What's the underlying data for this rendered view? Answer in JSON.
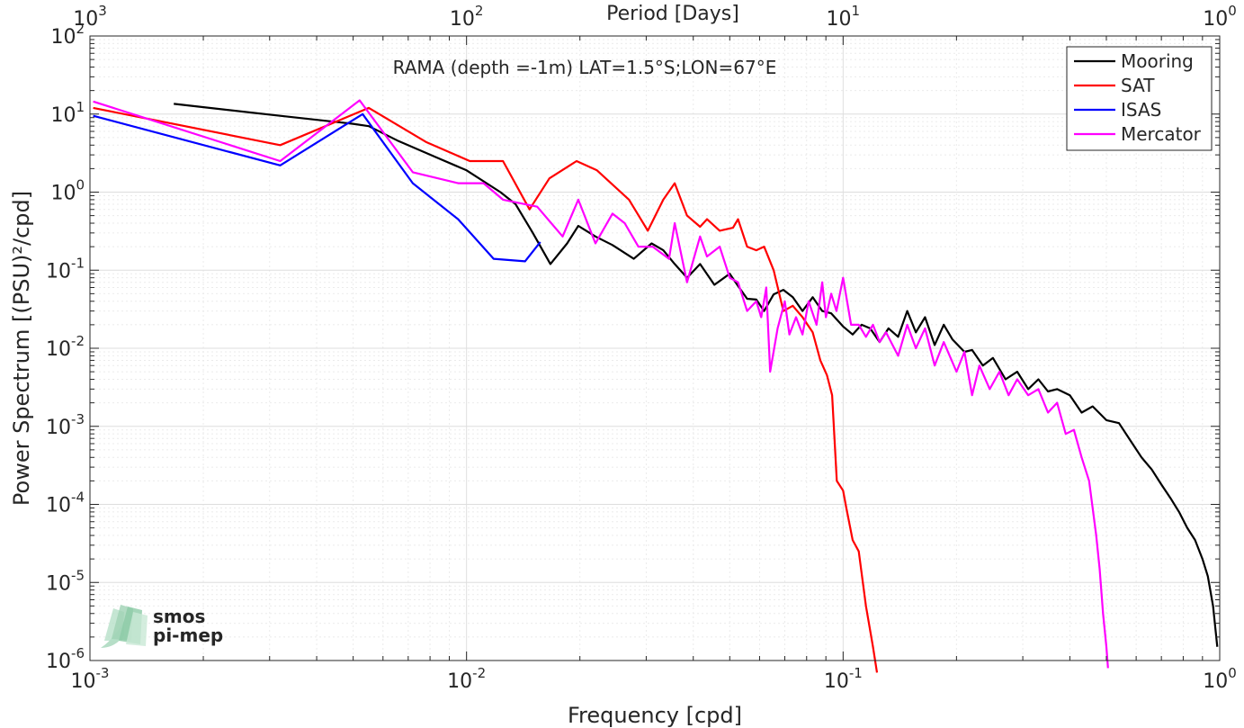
{
  "chart_data": {
    "type": "line",
    "title": "RAMA (depth =-1m) LAT=1.5°S;LON=67°E",
    "xlabel": "Frequency [cpd]",
    "ylabel": "Power Spectrum [(PSU)²/cpd]",
    "x2label": "Period [Days]",
    "xscale": "log",
    "yscale": "log",
    "xlim": [
      0.001,
      1
    ],
    "ylim": [
      1e-06,
      100
    ],
    "grid": true,
    "legend_position": "top-right",
    "x_ticks": [
      {
        "value": 0.001,
        "base": "10",
        "exp": "-3"
      },
      {
        "value": 0.01,
        "base": "10",
        "exp": "-2"
      },
      {
        "value": 0.1,
        "base": "10",
        "exp": "-1"
      },
      {
        "value": 1,
        "base": "10",
        "exp": "0"
      }
    ],
    "x2_ticks": [
      {
        "value": 0.001,
        "base": "10",
        "exp": "3"
      },
      {
        "value": 0.01,
        "base": "10",
        "exp": "2"
      },
      {
        "value": 0.1,
        "base": "10",
        "exp": "1"
      },
      {
        "value": 1,
        "base": "10",
        "exp": "0"
      }
    ],
    "y_ticks": [
      {
        "value": 100,
        "base": "10",
        "exp": "2"
      },
      {
        "value": 10,
        "base": "10",
        "exp": "1"
      },
      {
        "value": 1,
        "base": "10",
        "exp": "0"
      },
      {
        "value": 0.1,
        "base": "10",
        "exp": "-1"
      },
      {
        "value": 0.01,
        "base": "10",
        "exp": "-2"
      },
      {
        "value": 0.001,
        "base": "10",
        "exp": "-3"
      },
      {
        "value": 0.0001,
        "base": "10",
        "exp": "-4"
      },
      {
        "value": 1e-05,
        "base": "10",
        "exp": "-5"
      },
      {
        "value": 1e-06,
        "base": "10",
        "exp": "-6"
      }
    ],
    "series": [
      {
        "name": "Mooring",
        "color": "#000000",
        "points": [
          [
            0.00167,
            13.5
          ],
          [
            0.0032,
            9.5
          ],
          [
            0.005,
            7.5
          ],
          [
            0.0055,
            7.0
          ],
          [
            0.0066,
            4.5
          ],
          [
            0.0083,
            2.8
          ],
          [
            0.01,
            1.9
          ],
          [
            0.0123,
            1.0
          ],
          [
            0.0135,
            0.7
          ],
          [
            0.015,
            0.3
          ],
          [
            0.0167,
            0.12
          ],
          [
            0.0185,
            0.22
          ],
          [
            0.0198,
            0.37
          ],
          [
            0.022,
            0.27
          ],
          [
            0.0244,
            0.21
          ],
          [
            0.0278,
            0.14
          ],
          [
            0.031,
            0.22
          ],
          [
            0.0333,
            0.18
          ],
          [
            0.0357,
            0.12
          ],
          [
            0.0385,
            0.08
          ],
          [
            0.0417,
            0.12
          ],
          [
            0.0455,
            0.065
          ],
          [
            0.05,
            0.09
          ],
          [
            0.0526,
            0.063
          ],
          [
            0.0556,
            0.043
          ],
          [
            0.0588,
            0.042
          ],
          [
            0.0617,
            0.03
          ],
          [
            0.0654,
            0.049
          ],
          [
            0.0694,
            0.056
          ],
          [
            0.0735,
            0.045
          ],
          [
            0.078,
            0.03
          ],
          [
            0.083,
            0.045
          ],
          [
            0.088,
            0.03
          ],
          [
            0.093,
            0.028
          ],
          [
            0.1,
            0.019
          ],
          [
            0.106,
            0.015
          ],
          [
            0.112,
            0.02
          ],
          [
            0.118,
            0.018
          ],
          [
            0.125,
            0.012
          ],
          [
            0.132,
            0.018
          ],
          [
            0.14,
            0.014
          ],
          [
            0.148,
            0.03
          ],
          [
            0.156,
            0.016
          ],
          [
            0.165,
            0.025
          ],
          [
            0.175,
            0.011
          ],
          [
            0.185,
            0.02
          ],
          [
            0.195,
            0.013
          ],
          [
            0.21,
            0.009
          ],
          [
            0.22,
            0.0095
          ],
          [
            0.235,
            0.006
          ],
          [
            0.25,
            0.0075
          ],
          [
            0.27,
            0.004
          ],
          [
            0.29,
            0.005
          ],
          [
            0.31,
            0.003
          ],
          [
            0.33,
            0.004
          ],
          [
            0.35,
            0.0028
          ],
          [
            0.37,
            0.003
          ],
          [
            0.4,
            0.0025
          ],
          [
            0.43,
            0.0015
          ],
          [
            0.46,
            0.0018
          ],
          [
            0.5,
            0.0012
          ],
          [
            0.54,
            0.0011
          ],
          [
            0.58,
            0.00065
          ],
          [
            0.62,
            0.0004
          ],
          [
            0.66,
            0.00028
          ],
          [
            0.7,
            0.00018
          ],
          [
            0.74,
            0.00012
          ],
          [
            0.78,
            8e-05
          ],
          [
            0.82,
            5e-05
          ],
          [
            0.86,
            3.5e-05
          ],
          [
            0.9,
            2e-05
          ],
          [
            0.93,
            1.2e-05
          ],
          [
            0.96,
            5e-06
          ],
          [
            0.985,
            1.5e-06
          ]
        ]
      },
      {
        "name": "SAT",
        "color": "#ff0000",
        "points": [
          [
            0.00102,
            12
          ],
          [
            0.0032,
            4
          ],
          [
            0.0055,
            12
          ],
          [
            0.0078,
            4.4
          ],
          [
            0.0102,
            2.5
          ],
          [
            0.0125,
            2.5
          ],
          [
            0.0147,
            0.6
          ],
          [
            0.0166,
            1.5
          ],
          [
            0.0196,
            2.5
          ],
          [
            0.0222,
            1.9
          ],
          [
            0.027,
            0.8
          ],
          [
            0.0303,
            0.32
          ],
          [
            0.0333,
            0.8
          ],
          [
            0.0357,
            1.3
          ],
          [
            0.0385,
            0.5
          ],
          [
            0.0417,
            0.36
          ],
          [
            0.0435,
            0.45
          ],
          [
            0.047,
            0.32
          ],
          [
            0.051,
            0.35
          ],
          [
            0.0526,
            0.45
          ],
          [
            0.0556,
            0.2
          ],
          [
            0.0588,
            0.18
          ],
          [
            0.0617,
            0.2
          ],
          [
            0.0654,
            0.1
          ],
          [
            0.0694,
            0.03
          ],
          [
            0.0735,
            0.035
          ],
          [
            0.078,
            0.025
          ],
          [
            0.083,
            0.016
          ],
          [
            0.087,
            0.007
          ],
          [
            0.0906,
            0.0045
          ],
          [
            0.0935,
            0.0025
          ],
          [
            0.0962,
            0.0002
          ],
          [
            0.1,
            0.00015
          ],
          [
            0.102,
            9e-05
          ],
          [
            0.106,
            3.5e-05
          ],
          [
            0.11,
            2.5e-05
          ],
          [
            0.115,
            5e-06
          ],
          [
            0.12,
            1.5e-06
          ],
          [
            0.123,
            7e-07
          ]
        ]
      },
      {
        "name": "ISAS",
        "color": "#0000ff",
        "points": [
          [
            0.00102,
            9.5
          ],
          [
            0.0032,
            2.2
          ],
          [
            0.0053,
            10
          ],
          [
            0.0072,
            1.3
          ],
          [
            0.0095,
            0.45
          ],
          [
            0.0118,
            0.14
          ],
          [
            0.0143,
            0.13
          ],
          [
            0.0157,
            0.23
          ]
        ]
      },
      {
        "name": "Mercator",
        "color": "#ff00ff",
        "points": [
          [
            0.00102,
            14.5
          ],
          [
            0.0032,
            2.5
          ],
          [
            0.0052,
            15
          ],
          [
            0.0072,
            1.8
          ],
          [
            0.0095,
            1.3
          ],
          [
            0.0111,
            1.3
          ],
          [
            0.0125,
            0.8
          ],
          [
            0.0143,
            0.7
          ],
          [
            0.0154,
            0.65
          ],
          [
            0.018,
            0.27
          ],
          [
            0.0198,
            0.8
          ],
          [
            0.022,
            0.22
          ],
          [
            0.0244,
            0.53
          ],
          [
            0.0263,
            0.4
          ],
          [
            0.0286,
            0.2
          ],
          [
            0.0312,
            0.2
          ],
          [
            0.0345,
            0.14
          ],
          [
            0.0357,
            0.4
          ],
          [
            0.0385,
            0.07
          ],
          [
            0.0417,
            0.27
          ],
          [
            0.0435,
            0.15
          ],
          [
            0.047,
            0.2
          ],
          [
            0.05,
            0.08
          ],
          [
            0.0526,
            0.07
          ],
          [
            0.0556,
            0.03
          ],
          [
            0.0588,
            0.04
          ],
          [
            0.0606,
            0.025
          ],
          [
            0.0625,
            0.06
          ],
          [
            0.064,
            0.005
          ],
          [
            0.067,
            0.018
          ],
          [
            0.07,
            0.04
          ],
          [
            0.072,
            0.015
          ],
          [
            0.075,
            0.025
          ],
          [
            0.078,
            0.015
          ],
          [
            0.081,
            0.04
          ],
          [
            0.085,
            0.02
          ],
          [
            0.088,
            0.07
          ],
          [
            0.09,
            0.025
          ],
          [
            0.093,
            0.05
          ],
          [
            0.096,
            0.03
          ],
          [
            0.1,
            0.08
          ],
          [
            0.105,
            0.02
          ],
          [
            0.11,
            0.02
          ],
          [
            0.115,
            0.014
          ],
          [
            0.12,
            0.02
          ],
          [
            0.125,
            0.012
          ],
          [
            0.13,
            0.016
          ],
          [
            0.14,
            0.008
          ],
          [
            0.148,
            0.02
          ],
          [
            0.156,
            0.01
          ],
          [
            0.165,
            0.018
          ],
          [
            0.175,
            0.006
          ],
          [
            0.185,
            0.012
          ],
          [
            0.2,
            0.005
          ],
          [
            0.21,
            0.009
          ],
          [
            0.22,
            0.0025
          ],
          [
            0.23,
            0.006
          ],
          [
            0.245,
            0.003
          ],
          [
            0.26,
            0.005
          ],
          [
            0.275,
            0.0025
          ],
          [
            0.29,
            0.004
          ],
          [
            0.31,
            0.0025
          ],
          [
            0.33,
            0.003
          ],
          [
            0.35,
            0.0015
          ],
          [
            0.37,
            0.002
          ],
          [
            0.39,
            0.0008
          ],
          [
            0.41,
            0.0009
          ],
          [
            0.43,
            0.0004
          ],
          [
            0.45,
            0.0002
          ],
          [
            0.47,
            4e-05
          ],
          [
            0.48,
            1.5e-05
          ],
          [
            0.49,
            4e-06
          ],
          [
            0.5,
            1.5e-06
          ],
          [
            0.505,
            8e-07
          ]
        ]
      }
    ]
  },
  "logo": {
    "line1": "smos",
    "line2": "pi-mep",
    "color": "#7fbf9a"
  }
}
